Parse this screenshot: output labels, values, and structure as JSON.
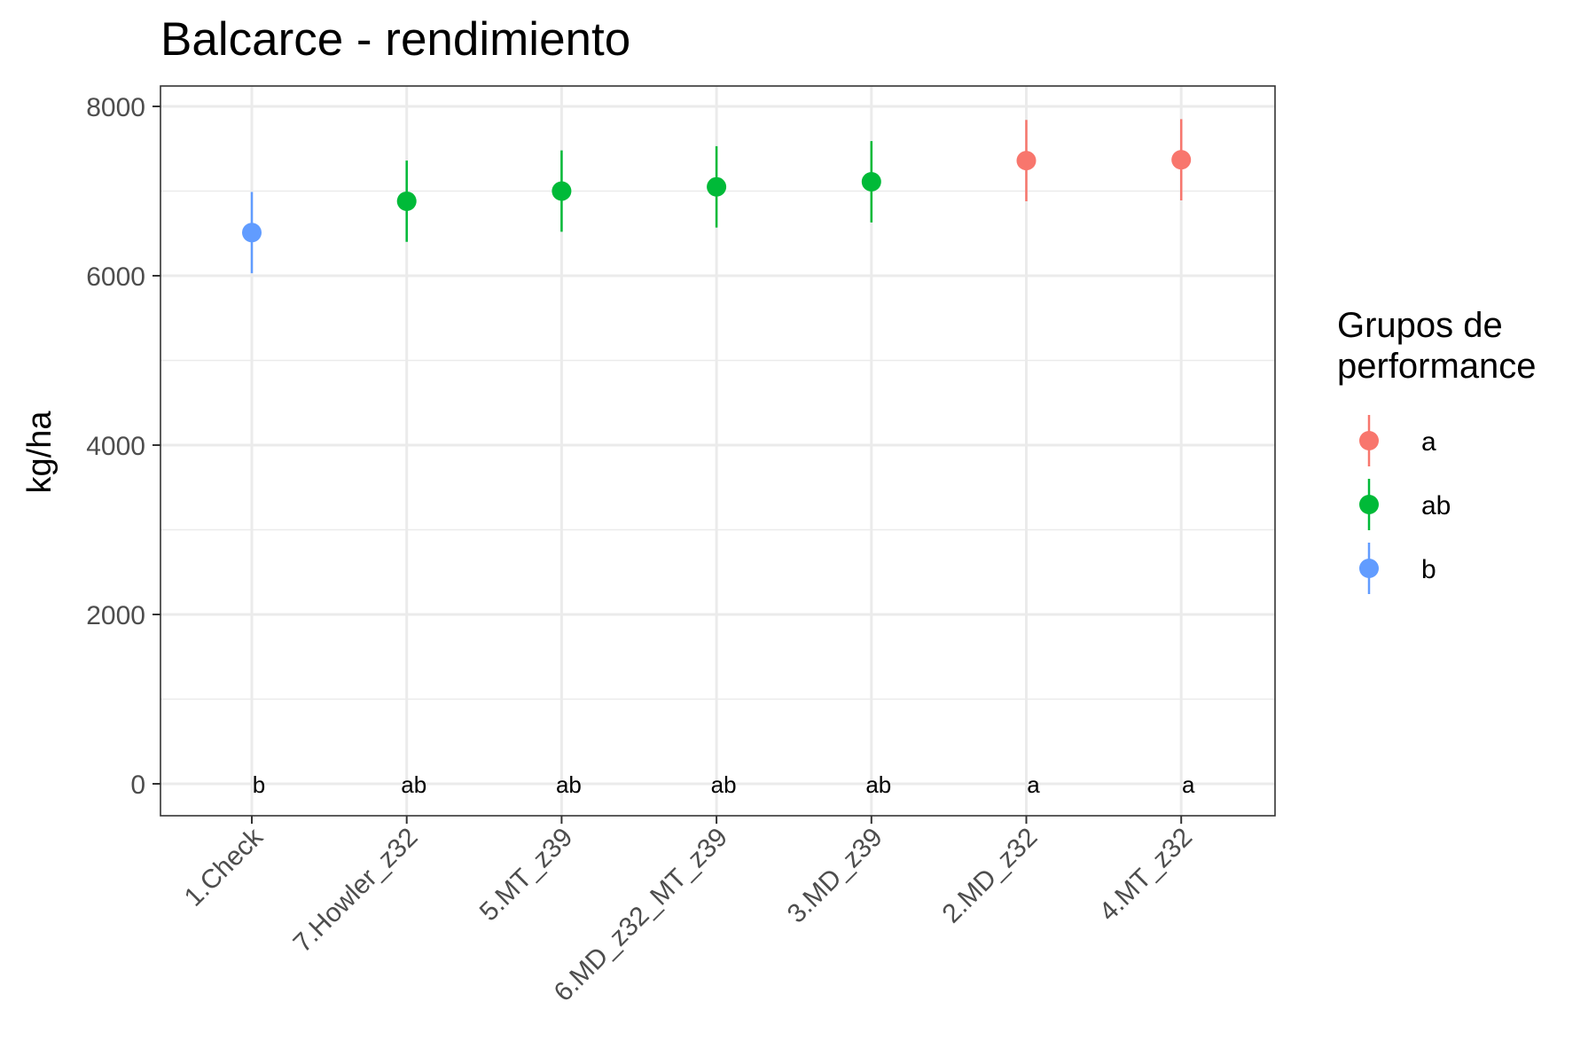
{
  "chart_data": {
    "type": "scatter",
    "title": "Balcarce - rendimiento",
    "xlabel": "",
    "ylabel": "kg/ha",
    "ylim": [
      -380,
      8250
    ],
    "yticks": [
      0,
      2000,
      4000,
      6000,
      8000
    ],
    "grid": true,
    "legend_position": "right",
    "legend_title_lines": [
      "Grupos de",
      "performance"
    ],
    "groups": [
      {
        "name": "a",
        "color": "#F8766D"
      },
      {
        "name": "ab",
        "color": "#00BA38"
      },
      {
        "name": "b",
        "color": "#619CFF"
      }
    ],
    "categories": [
      "1.Check",
      "7.Howler_z32",
      "5.MT_z39",
      "6.MD_z32_MT_z39",
      "3.MD_z39",
      "2.MD_z32",
      "4.MT_z32"
    ],
    "points": [
      {
        "category": "1.Check",
        "y": 6510,
        "ymin": 6030,
        "ymax": 6990,
        "group": "b"
      },
      {
        "category": "7.Howler_z32",
        "y": 6880,
        "ymin": 6400,
        "ymax": 7360,
        "group": "ab"
      },
      {
        "category": "5.MT_z39",
        "y": 7000,
        "ymin": 6520,
        "ymax": 7480,
        "group": "ab"
      },
      {
        "category": "6.MD_z32_MT_z39",
        "y": 7050,
        "ymin": 6570,
        "ymax": 7530,
        "group": "ab"
      },
      {
        "category": "3.MD_z39",
        "y": 7110,
        "ymin": 6630,
        "ymax": 7590,
        "group": "ab"
      },
      {
        "category": "2.MD_z32",
        "y": 7360,
        "ymin": 6880,
        "ymax": 7840,
        "group": "a"
      },
      {
        "category": "4.MT_z32",
        "y": 7370,
        "ymin": 6890,
        "ymax": 7850,
        "group": "a"
      }
    ],
    "annotations": [
      {
        "category": "1.Check",
        "y": 0,
        "text": "b"
      },
      {
        "category": "7.Howler_z32",
        "y": 0,
        "text": "ab"
      },
      {
        "category": "5.MT_z39",
        "y": 0,
        "text": "ab"
      },
      {
        "category": "6.MD_z32_MT_z39",
        "y": 0,
        "text": "ab"
      },
      {
        "category": "3.MD_z39",
        "y": 0,
        "text": "ab"
      },
      {
        "category": "2.MD_z32",
        "y": 0,
        "text": "a"
      },
      {
        "category": "4.MT_z32",
        "y": 0,
        "text": "a"
      }
    ]
  }
}
